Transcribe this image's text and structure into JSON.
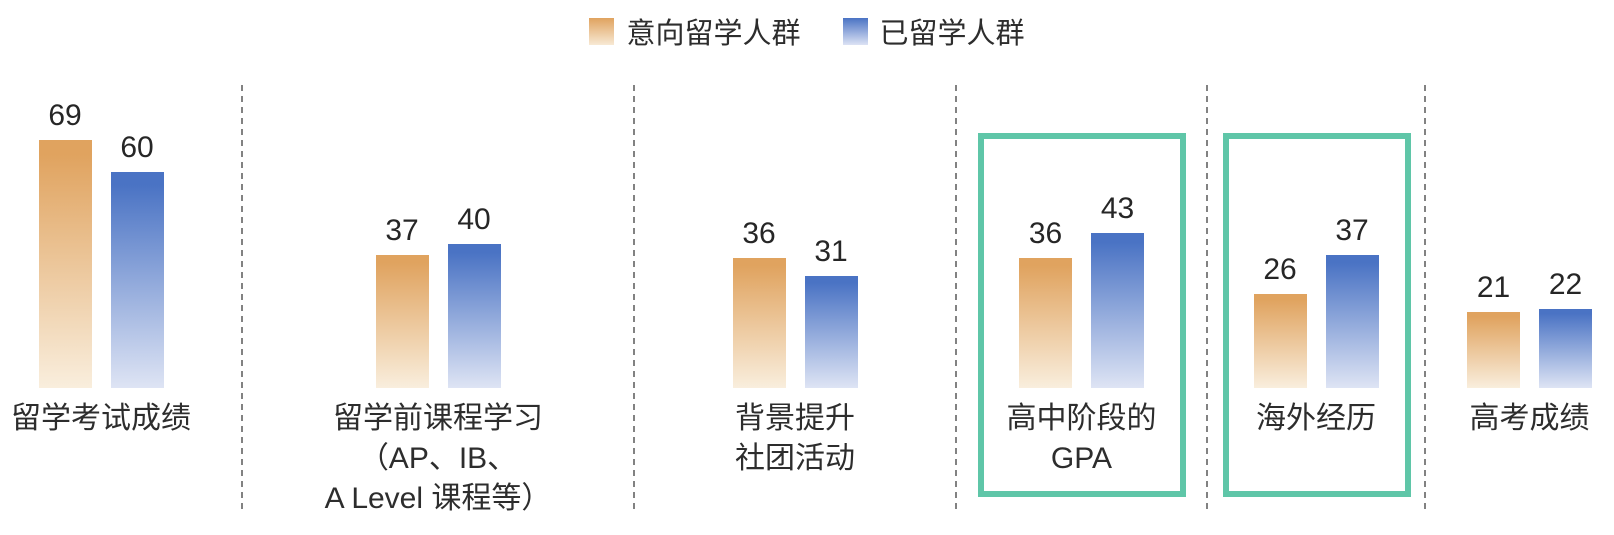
{
  "chart_data": {
    "type": "bar",
    "legend_position": "top",
    "grid": false,
    "value_labels_shown": true,
    "series": [
      {
        "name": "意向留学人群",
        "color_top": "#E0A35F",
        "color_bottom": "#F9EEDD"
      },
      {
        "name": "已留学人群",
        "color_top": "#4A73C4",
        "color_bottom": "#DEE4F4"
      }
    ],
    "groups": [
      {
        "label": "留学考试成绩",
        "label_lines": [
          "留学考试成绩"
        ],
        "values": [
          69,
          60
        ],
        "highlighted": false
      },
      {
        "label": "留学前课程学习（AP、IB、A Level 课程等）",
        "label_lines": [
          "留学前课程学习",
          "（AP、IB、",
          "A Level 课程等）"
        ],
        "values": [
          37,
          40
        ],
        "highlighted": false
      },
      {
        "label": "背景提升 社团活动",
        "label_lines": [
          "背景提升",
          "社团活动"
        ],
        "values": [
          36,
          31
        ],
        "highlighted": false
      },
      {
        "label": "高中阶段的 GPA",
        "label_lines": [
          "高中阶段的",
          "GPA"
        ],
        "values": [
          36,
          43
        ],
        "highlighted": true
      },
      {
        "label": "海外经历",
        "label_lines": [
          "海外经历"
        ],
        "values": [
          26,
          37
        ],
        "highlighted": true
      },
      {
        "label": "高考成绩",
        "label_lines": [
          "高考成绩"
        ],
        "values": [
          21,
          22
        ],
        "highlighted": false
      }
    ],
    "ylim": [
      0,
      84
    ],
    "highlight_color": "#5FC6A8",
    "separator_color": "#828282",
    "text_color": "#2d2d2d"
  }
}
